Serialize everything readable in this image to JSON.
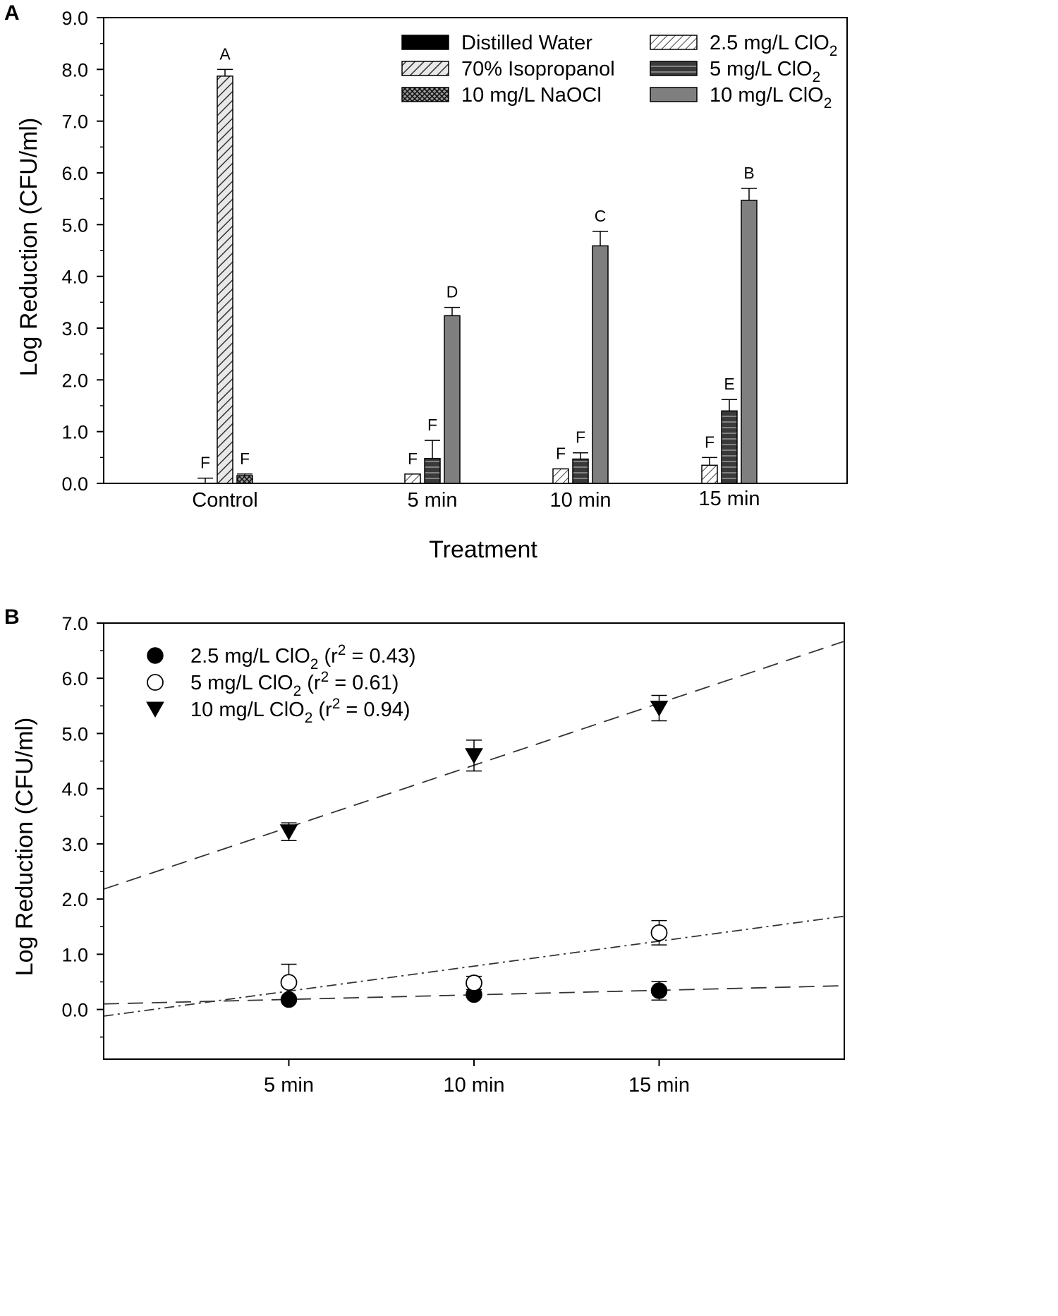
{
  "panel_a": {
    "label": "A",
    "x_axis_title": "Treatment",
    "y_axis_title": "Log Reduction (CFU/ml)"
  },
  "panel_b": {
    "label": "B",
    "y_axis_title": "Log Reduction (CFU/ml)"
  },
  "colors": {
    "distilled_water": "#000000",
    "isopropanol": "#bdbdbd",
    "naocl": "#555555",
    "clo2_2_5": "#ffffff",
    "clo2_5": "#3a3a3a",
    "clo2_10": "#7f7f7f"
  },
  "chart_data": [
    {
      "type": "bar",
      "panel": "A",
      "title": "",
      "xlabel": "Treatment",
      "ylabel": "Log Reduction (CFU/ml)",
      "ylim": [
        0,
        9
      ],
      "yticks": [
        "0.0",
        "1.0",
        "2.0",
        "3.0",
        "4.0",
        "5.0",
        "6.0",
        "7.0",
        "8.0",
        "9.0"
      ],
      "categories": [
        "Control",
        "5 min",
        "10 min",
        "15 min"
      ],
      "legend_position": "top-right",
      "series": [
        {
          "name": "Distilled Water",
          "pattern": "solid-black",
          "values": [
            0.0,
            null,
            null,
            null
          ],
          "errors": [
            0.1,
            null,
            null,
            null
          ],
          "letters": [
            "F",
            null,
            null,
            null
          ]
        },
        {
          "name": "70% Isopropanol",
          "pattern": "diagonal-hatch",
          "values": [
            7.87,
            null,
            null,
            null
          ],
          "errors": [
            0.13,
            null,
            null,
            null
          ],
          "letters": [
            "A",
            null,
            null,
            null
          ]
        },
        {
          "name": "10 mg/L NaOCl",
          "pattern": "crosshatch",
          "values": [
            0.15,
            null,
            null,
            null
          ],
          "errors": [
            0.03,
            null,
            null,
            null
          ],
          "letters": [
            "F",
            null,
            null,
            null
          ]
        },
        {
          "name_main": "2.5 mg/L ClO",
          "name_sub": "2",
          "pattern": "light-diagonal-hatch",
          "values": [
            null,
            0.18,
            0.28,
            0.35
          ],
          "errors": [
            null,
            0.0,
            0.0,
            0.15
          ],
          "letters": [
            null,
            "F",
            "F",
            "F"
          ]
        },
        {
          "name_main": "5 mg/L ClO",
          "name_sub": "2",
          "pattern": "horizontal-lines",
          "values": [
            null,
            0.48,
            0.47,
            1.4
          ],
          "errors": [
            null,
            0.35,
            0.12,
            0.22
          ],
          "letters": [
            null,
            "F",
            "F",
            "E"
          ]
        },
        {
          "name_main": "10 mg/L ClO",
          "name_sub": "2",
          "pattern": "solid-gray",
          "values": [
            null,
            3.24,
            4.59,
            5.47
          ],
          "errors": [
            null,
            0.16,
            0.28,
            0.23
          ],
          "letters": [
            null,
            "D",
            "C",
            "B"
          ]
        }
      ]
    },
    {
      "type": "scatter",
      "panel": "B",
      "title": "",
      "xlabel": "",
      "ylabel": "Log Reduction (CFU/ml)",
      "ylim": [
        -0.9,
        7.0
      ],
      "yticks": [
        "0.0",
        "1.0",
        "2.0",
        "3.0",
        "4.0",
        "5.0",
        "6.0",
        "7.0"
      ],
      "x_positions": [
        5,
        10,
        15
      ],
      "xlim": [
        0,
        20
      ],
      "xticks": [
        "5 min",
        "10 min",
        "15 min"
      ],
      "legend_position": "top-left",
      "series": [
        {
          "name_main": "2.5 mg/L ClO",
          "name_sub": "2",
          "r2_text": " (r",
          "r2_sup": "2",
          "r2_value": " = 0.43)",
          "marker": "filled-circle",
          "values": [
            0.18,
            0.27,
            0.34
          ],
          "errors": [
            0.0,
            0.0,
            0.17
          ],
          "fit": {
            "intercept": 0.1,
            "slope": 0.0165,
            "dash": "22,12"
          }
        },
        {
          "name_main": "5 mg/L ClO",
          "name_sub": "2",
          "r2_text": " (r",
          "r2_sup": "2",
          "r2_value": " = 0.61)",
          "marker": "open-circle",
          "values": [
            0.49,
            0.48,
            1.39
          ],
          "errors": [
            0.33,
            0.12,
            0.22
          ],
          "fit": {
            "intercept": -0.12,
            "slope": 0.0905,
            "dash": "14,6,3,6"
          }
        },
        {
          "name_main": "10 mg/L ClO",
          "name_sub": "2",
          "r2_text": " (r",
          "r2_sup": "2",
          "r2_value": " = 0.94)",
          "marker": "filled-triangle-down",
          "values": [
            3.22,
            4.6,
            5.46
          ],
          "errors": [
            0.16,
            0.28,
            0.23
          ],
          "fit": {
            "intercept": 2.18,
            "slope": 0.2245,
            "dash": "22,12"
          }
        }
      ]
    }
  ]
}
